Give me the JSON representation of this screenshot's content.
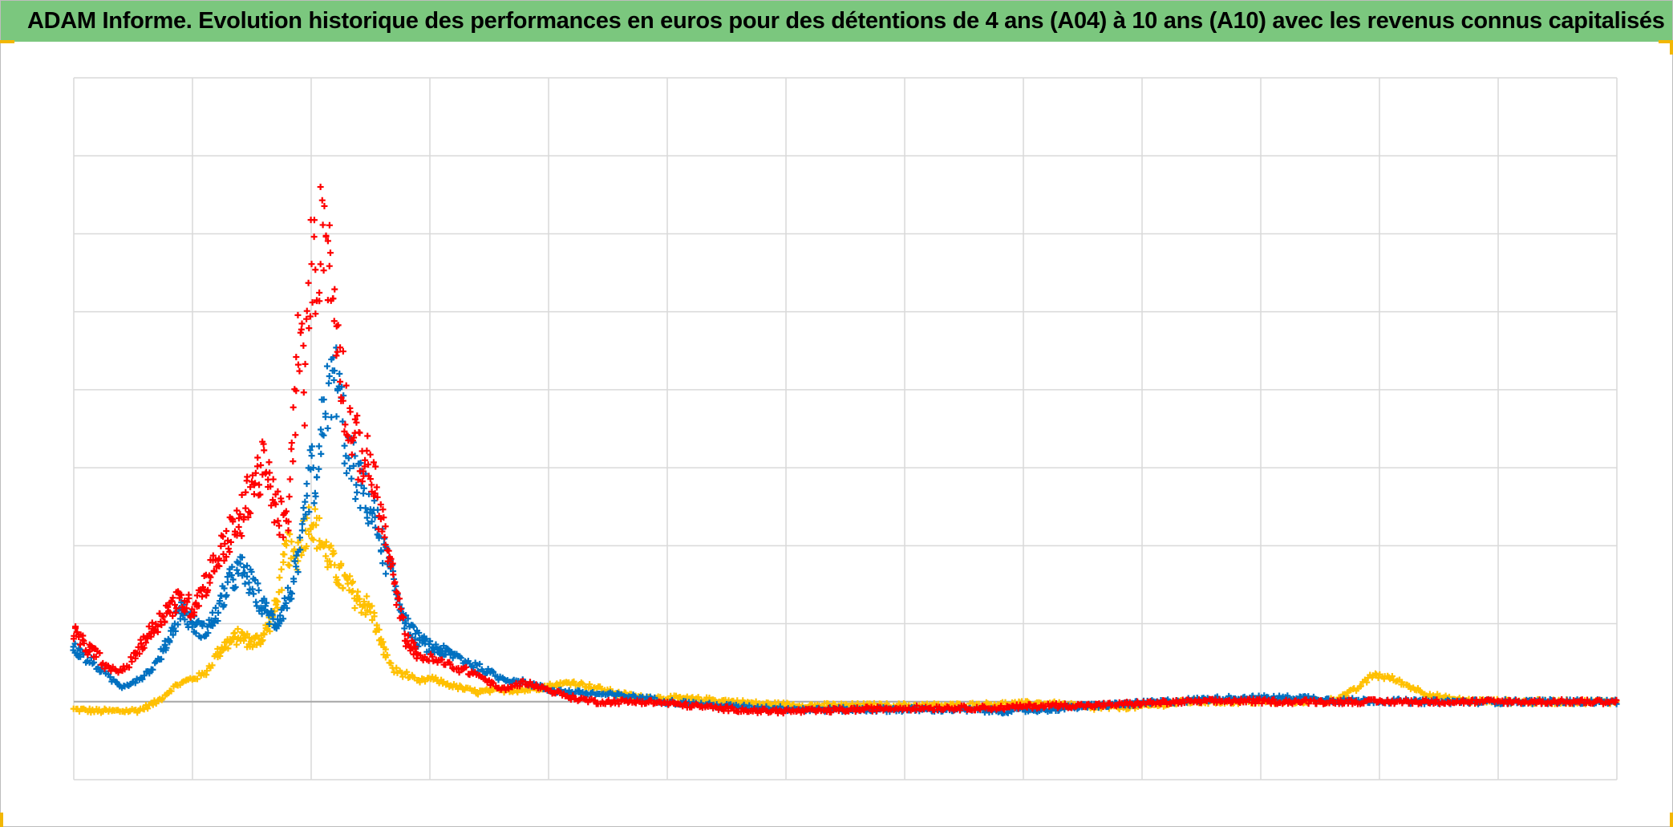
{
  "title": "ADAM Informe. Evolution historique des performances en euros pour des détentions de 4 ans (A04) à 10 ans (A10) avec les revenus connus capitalisés",
  "colors": {
    "title_bar": "#7bc77e",
    "grid": "#d9d9d9",
    "baseline": "#a6a6a6",
    "corner_marks": "#f2b705"
  },
  "chart_data": {
    "type": "scatter",
    "title": "ADAM Informe. Evolution historique des performances en euros pour des détentions de 4 ans (A04) à 10 ans (A10) avec les revenus connus capitalisés",
    "xlabel": "",
    "ylabel": "",
    "x_range": [
      0,
      13
    ],
    "y_range": [
      -1,
      8
    ],
    "grid": true,
    "legend": "none",
    "tick_labels_visible": false,
    "marker": "plus",
    "series": [
      {
        "color": "#ffc000",
        "points": [
          [
            0.0,
            -0.1
          ],
          [
            0.2,
            -0.12
          ],
          [
            0.4,
            -0.12
          ],
          [
            0.55,
            -0.11
          ],
          [
            0.7,
            0.0
          ],
          [
            0.85,
            0.2
          ],
          [
            1.0,
            0.3
          ],
          [
            1.1,
            0.35
          ],
          [
            1.25,
            0.7
          ],
          [
            1.4,
            0.85
          ],
          [
            1.5,
            0.75
          ],
          [
            1.6,
            0.85
          ],
          [
            1.7,
            1.2
          ],
          [
            1.8,
            2.0
          ],
          [
            1.85,
            1.8
          ],
          [
            1.9,
            2.0
          ],
          [
            2.0,
            2.4
          ],
          [
            2.1,
            2.0
          ],
          [
            2.2,
            1.7
          ],
          [
            2.3,
            1.5
          ],
          [
            2.4,
            1.3
          ],
          [
            2.5,
            1.2
          ],
          [
            2.6,
            0.7
          ],
          [
            2.7,
            0.4
          ],
          [
            2.8,
            0.35
          ],
          [
            2.9,
            0.25
          ],
          [
            3.0,
            0.3
          ],
          [
            3.2,
            0.2
          ],
          [
            3.4,
            0.12
          ],
          [
            3.6,
            0.15
          ],
          [
            3.8,
            0.15
          ],
          [
            4.0,
            0.2
          ],
          [
            4.2,
            0.25
          ],
          [
            4.4,
            0.18
          ],
          [
            4.6,
            0.1
          ],
          [
            4.8,
            0.05
          ],
          [
            5.0,
            0.05
          ],
          [
            5.4,
            0.02
          ],
          [
            5.8,
            -0.03
          ],
          [
            6.2,
            -0.05
          ],
          [
            6.6,
            -0.05
          ],
          [
            7.0,
            -0.05
          ],
          [
            7.4,
            -0.05
          ],
          [
            7.8,
            -0.03
          ],
          [
            8.2,
            -0.02
          ],
          [
            8.6,
            -0.08
          ],
          [
            9.0,
            -0.06
          ],
          [
            9.4,
            0.0
          ],
          [
            9.8,
            0.0
          ],
          [
            10.2,
            0.0
          ],
          [
            10.6,
            0.02
          ],
          [
            10.8,
            0.15
          ],
          [
            10.95,
            0.35
          ],
          [
            11.1,
            0.3
          ],
          [
            11.25,
            0.2
          ],
          [
            11.4,
            0.1
          ],
          [
            11.6,
            0.03
          ],
          [
            11.8,
            0.01
          ],
          [
            12.2,
            0.0
          ],
          [
            12.6,
            0.0
          ],
          [
            13.0,
            0.0
          ]
        ]
      },
      {
        "color": "#0070c0",
        "points": [
          [
            0.0,
            0.7
          ],
          [
            0.1,
            0.55
          ],
          [
            0.2,
            0.45
          ],
          [
            0.3,
            0.3
          ],
          [
            0.4,
            0.2
          ],
          [
            0.5,
            0.25
          ],
          [
            0.6,
            0.35
          ],
          [
            0.7,
            0.5
          ],
          [
            0.8,
            0.8
          ],
          [
            0.9,
            1.2
          ],
          [
            1.0,
            1.0
          ],
          [
            1.1,
            0.9
          ],
          [
            1.2,
            1.1
          ],
          [
            1.3,
            1.5
          ],
          [
            1.4,
            1.7
          ],
          [
            1.5,
            1.5
          ],
          [
            1.6,
            1.2
          ],
          [
            1.7,
            1.0
          ],
          [
            1.8,
            1.3
          ],
          [
            1.9,
            1.8
          ],
          [
            2.0,
            3.0
          ],
          [
            2.05,
            2.6
          ],
          [
            2.1,
            3.7
          ],
          [
            2.2,
            4.2
          ],
          [
            2.25,
            3.8
          ],
          [
            2.3,
            3.2
          ],
          [
            2.4,
            2.8
          ],
          [
            2.5,
            2.5
          ],
          [
            2.6,
            2.0
          ],
          [
            2.7,
            1.5
          ],
          [
            2.8,
            1.0
          ],
          [
            2.9,
            0.8
          ],
          [
            3.0,
            0.7
          ],
          [
            3.2,
            0.6
          ],
          [
            3.4,
            0.45
          ],
          [
            3.6,
            0.3
          ],
          [
            3.8,
            0.25
          ],
          [
            4.0,
            0.15
          ],
          [
            4.2,
            0.12
          ],
          [
            4.4,
            0.1
          ],
          [
            4.6,
            0.08
          ],
          [
            4.8,
            0.05
          ],
          [
            5.0,
            0.0
          ],
          [
            5.4,
            -0.05
          ],
          [
            5.8,
            -0.08
          ],
          [
            6.2,
            -0.1
          ],
          [
            6.6,
            -0.1
          ],
          [
            7.0,
            -0.1
          ],
          [
            7.4,
            -0.1
          ],
          [
            7.8,
            -0.12
          ],
          [
            8.2,
            -0.1
          ],
          [
            8.6,
            -0.05
          ],
          [
            9.0,
            -0.02
          ],
          [
            9.4,
            0.02
          ],
          [
            9.8,
            0.05
          ],
          [
            10.2,
            0.05
          ],
          [
            10.4,
            0.05
          ],
          [
            10.6,
            0.02
          ],
          [
            11.0,
            0.01
          ],
          [
            11.4,
            0.0
          ],
          [
            11.8,
            0.0
          ],
          [
            12.2,
            0.0
          ],
          [
            12.6,
            0.0
          ],
          [
            13.0,
            0.0
          ]
        ]
      },
      {
        "color": "#ff0000",
        "points": [
          [
            0.0,
            0.9
          ],
          [
            0.1,
            0.7
          ],
          [
            0.2,
            0.6
          ],
          [
            0.3,
            0.4
          ],
          [
            0.4,
            0.4
          ],
          [
            0.5,
            0.55
          ],
          [
            0.6,
            0.8
          ],
          [
            0.7,
            1.0
          ],
          [
            0.8,
            1.2
          ],
          [
            0.9,
            1.3
          ],
          [
            1.0,
            1.2
          ],
          [
            1.1,
            1.5
          ],
          [
            1.2,
            1.8
          ],
          [
            1.3,
            2.1
          ],
          [
            1.4,
            2.3
          ],
          [
            1.5,
            2.8
          ],
          [
            1.6,
            3.0
          ],
          [
            1.7,
            2.5
          ],
          [
            1.8,
            2.2
          ],
          [
            1.85,
            3.5
          ],
          [
            1.9,
            4.7
          ],
          [
            1.95,
            4.0
          ],
          [
            2.0,
            5.8
          ],
          [
            2.05,
            5.5
          ],
          [
            2.1,
            6.3
          ],
          [
            2.15,
            5.6
          ],
          [
            2.2,
            5.0
          ],
          [
            2.3,
            3.7
          ],
          [
            2.4,
            3.2
          ],
          [
            2.5,
            3.0
          ],
          [
            2.6,
            2.3
          ],
          [
            2.7,
            1.5
          ],
          [
            2.8,
            0.8
          ],
          [
            2.9,
            0.6
          ],
          [
            3.0,
            0.55
          ],
          [
            3.2,
            0.45
          ],
          [
            3.4,
            0.35
          ],
          [
            3.6,
            0.15
          ],
          [
            3.8,
            0.25
          ],
          [
            4.0,
            0.15
          ],
          [
            4.2,
            0.05
          ],
          [
            4.4,
            0.0
          ],
          [
            4.6,
            0.0
          ],
          [
            4.8,
            0.0
          ],
          [
            5.0,
            -0.02
          ],
          [
            5.4,
            -0.08
          ],
          [
            5.8,
            -0.12
          ],
          [
            6.2,
            -0.12
          ],
          [
            6.6,
            -0.1
          ],
          [
            7.0,
            -0.08
          ],
          [
            7.4,
            -0.08
          ],
          [
            7.8,
            -0.08
          ],
          [
            8.2,
            -0.05
          ],
          [
            8.6,
            -0.05
          ],
          [
            9.0,
            -0.02
          ],
          [
            9.4,
            0.0
          ],
          [
            9.8,
            0.01
          ],
          [
            10.2,
            0.0
          ],
          [
            10.6,
            0.0
          ],
          [
            11.0,
            0.0
          ],
          [
            11.4,
            0.0
          ],
          [
            11.8,
            0.0
          ],
          [
            12.2,
            0.0
          ],
          [
            12.6,
            0.0
          ],
          [
            13.0,
            0.0
          ]
        ]
      }
    ]
  }
}
